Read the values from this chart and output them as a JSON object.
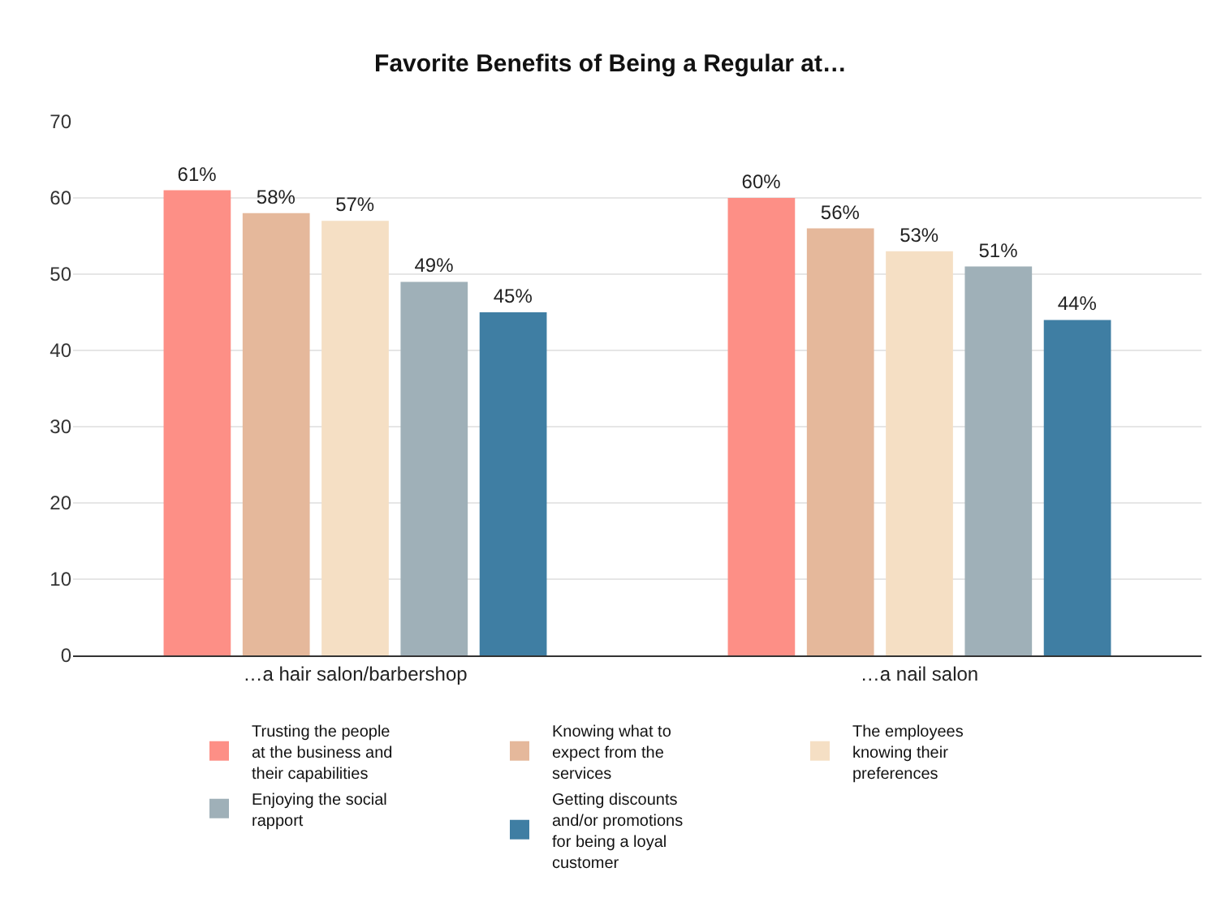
{
  "chart_data": {
    "type": "bar",
    "title": "Favorite Benefits of Being a Regular at…",
    "categories": [
      "…a hair salon/barbershop",
      "…a nail salon"
    ],
    "series": [
      {
        "name": "Trusting the people at the business and their capabilities",
        "color": "#fd8f86",
        "values": [
          61,
          60
        ],
        "value_labels": [
          "61%",
          "60%"
        ]
      },
      {
        "name": "Knowing what to expect from the services",
        "color": "#e5b89b",
        "values": [
          58,
          56
        ],
        "value_labels": [
          "58%",
          "56%"
        ]
      },
      {
        "name": "The employees knowing their preferences",
        "color": "#f5dfc4",
        "values": [
          57,
          53
        ],
        "value_labels": [
          "57%",
          "53%"
        ]
      },
      {
        "name": "Enjoying the social rapport",
        "color": "#9fb0b8",
        "values": [
          49,
          51
        ],
        "value_labels": [
          "49%",
          "51%"
        ]
      },
      {
        "name": "Getting discounts and/or promotions for being a loyal customer",
        "color": "#3f7ea3",
        "values": [
          45,
          44
        ],
        "value_labels": [
          "45%",
          "44%"
        ]
      }
    ],
    "ylim": [
      0,
      70
    ],
    "yticks": [
      0,
      10,
      20,
      30,
      40,
      50,
      60,
      70
    ],
    "grid": "y",
    "legend": "bottom"
  }
}
